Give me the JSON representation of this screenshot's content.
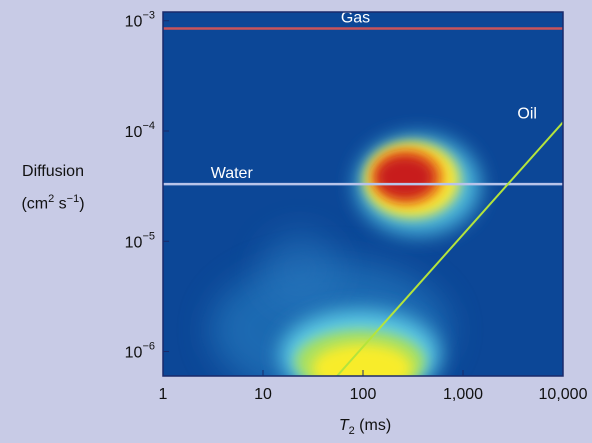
{
  "chart_data": {
    "type": "heatmap",
    "xscale": "log",
    "yscale": "log",
    "xlim": [
      1,
      10000
    ],
    "ylim": [
      6e-07,
      0.0012
    ],
    "x_ticks": [
      {
        "value": 1,
        "label": "1"
      },
      {
        "value": 10,
        "label": "10"
      },
      {
        "value": 100,
        "label": "100"
      },
      {
        "value": 1000,
        "label": "1,000"
      },
      {
        "value": 10000,
        "label": "10,000"
      }
    ],
    "y_ticks": [
      {
        "value": 1e-06,
        "base": "10",
        "exp": "−6"
      },
      {
        "value": 1e-05,
        "base": "10",
        "exp": "−5"
      },
      {
        "value": 0.0001,
        "base": "10",
        "exp": "−4"
      },
      {
        "value": 0.001,
        "base": "10",
        "exp": "−3"
      }
    ],
    "xlabel": {
      "symbol": "T",
      "subscript": "2",
      "unit": " (ms)"
    },
    "ylabel": {
      "line1": "Diffusion",
      "unit_prefix": "(cm",
      "unit_exp1": "2",
      "unit_mid": " s",
      "unit_exp2": "−1",
      "unit_suffix": ")"
    },
    "reference_lines": [
      {
        "label": "Gas",
        "kind": "horizontal",
        "y": 0.00085,
        "color": "#c8545a",
        "label_x": 60
      },
      {
        "label": "Water",
        "kind": "horizontal",
        "y": 3.3e-05,
        "color": "#b8c4ea",
        "label_x": 3
      },
      {
        "label": "Oil",
        "kind": "line",
        "points": [
          [
            55,
            6e-07
          ],
          [
            10000,
            0.00012
          ]
        ],
        "color": "#b4e43c",
        "label_x": 3500,
        "label_y": 0.00013
      }
    ],
    "peaks": [
      {
        "name": "water-peak",
        "x": 280,
        "y": 3.6e-05,
        "intensity": 1.0
      },
      {
        "name": "oil-peak",
        "x": 180,
        "y": 6.5e-07,
        "intensity": 0.75
      }
    ],
    "colors": {
      "background": "#0f4a9a",
      "plot_bg": "#0c4797",
      "frame": "#1a2a6a",
      "page": "#c8cbe6"
    }
  }
}
